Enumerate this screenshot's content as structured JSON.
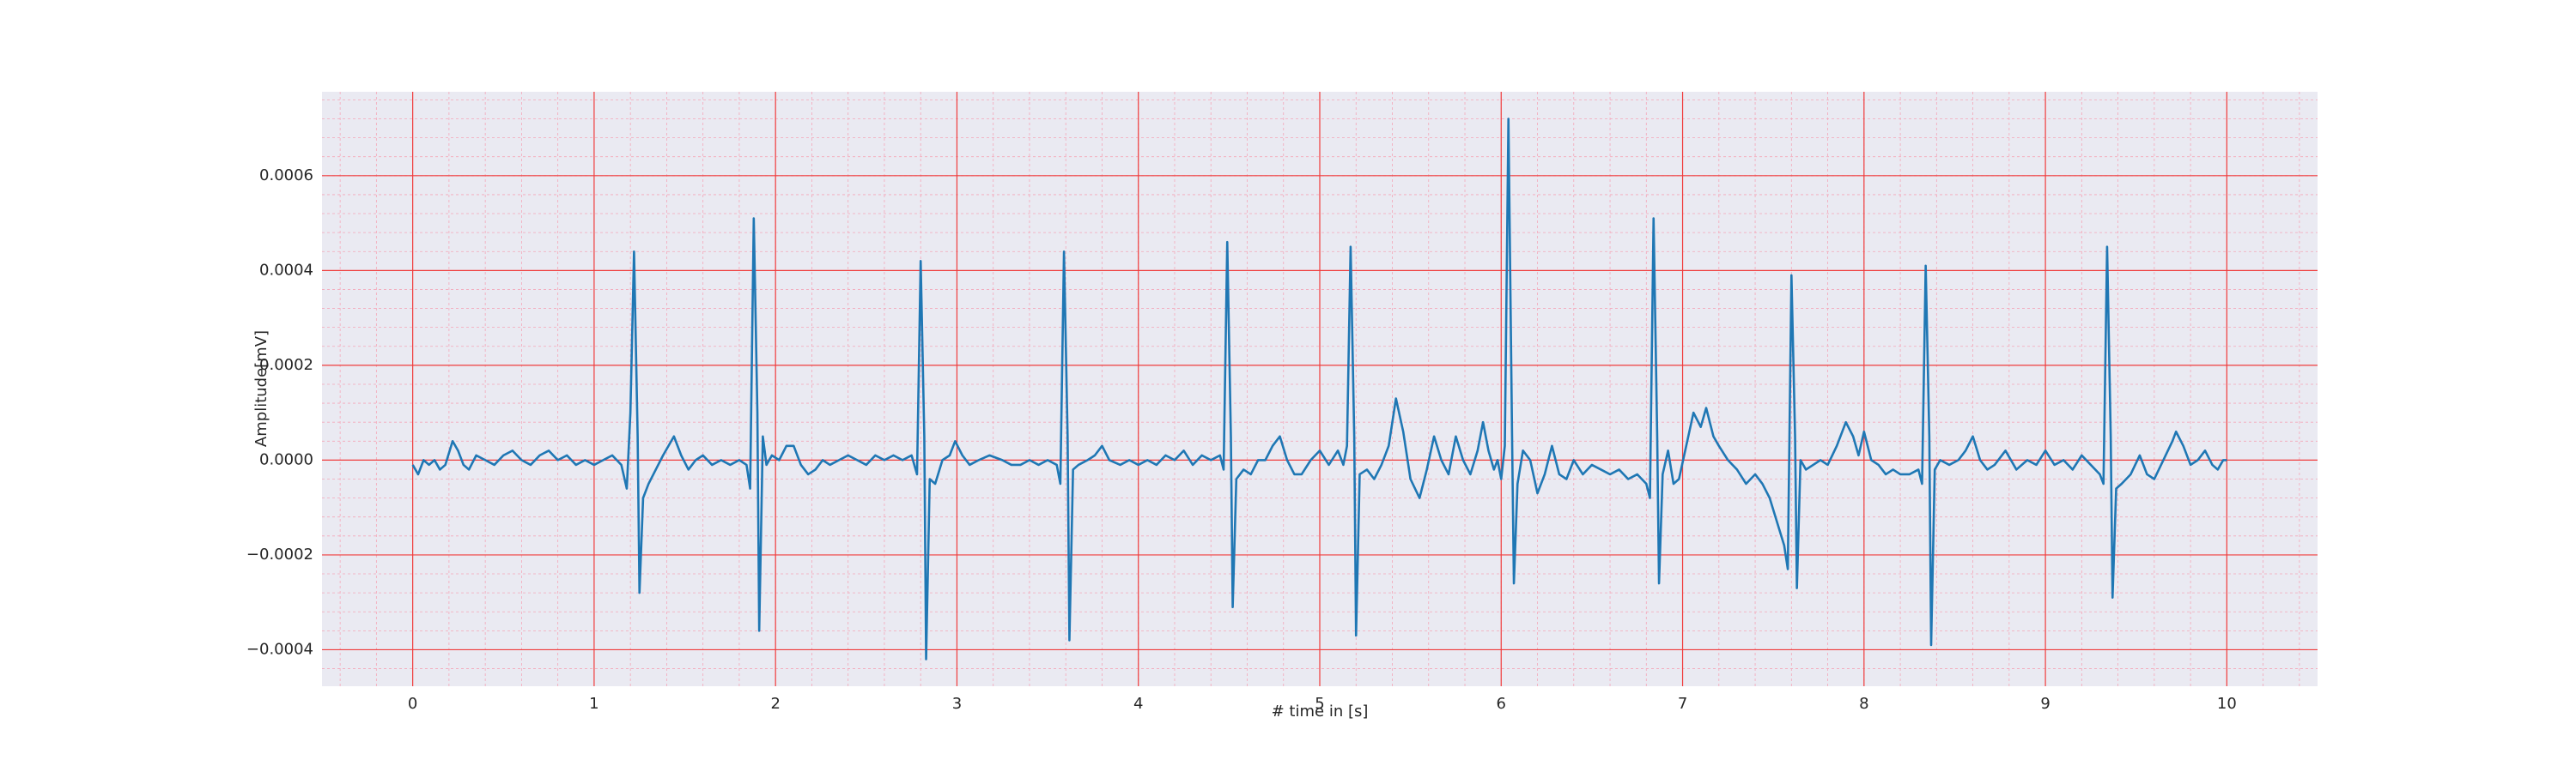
{
  "chart_data": {
    "type": "line",
    "xlabel": "# time in [s]",
    "ylabel": "Amplitude[mV]",
    "color": "#1f77b4",
    "grid": true,
    "minor_grid": true,
    "xlim": [
      -0.5,
      10.5
    ],
    "xticks": [
      0,
      1,
      2,
      3,
      4,
      5,
      6,
      7,
      8,
      9,
      10
    ],
    "ylim": [
      -0.000477,
      0.000777
    ],
    "yticks": [
      {
        "value": -0.0004,
        "label": "−0.0004"
      },
      {
        "value": -0.0002,
        "label": "−0.0002"
      },
      {
        "value": 0,
        "label": "0.0000"
      },
      0.0002,
      0.0004,
      0.0006
    ],
    "x": [
      0,
      0.03,
      0.06,
      0.09,
      0.12,
      0.15,
      0.18,
      0.22,
      0.25,
      0.28,
      0.31,
      0.35,
      0.4,
      0.45,
      0.5,
      0.55,
      0.6,
      0.65,
      0.7,
      0.75,
      0.8,
      0.85,
      0.9,
      0.95,
      1.0,
      1.05,
      1.1,
      1.15,
      1.18,
      1.2,
      1.22,
      1.24,
      1.25,
      1.27,
      1.3,
      1.34,
      1.38,
      1.44,
      1.48,
      1.52,
      1.56,
      1.6,
      1.65,
      1.7,
      1.75,
      1.8,
      1.84,
      1.86,
      1.88,
      1.9,
      1.91,
      1.93,
      1.95,
      1.98,
      2.02,
      2.06,
      2.1,
      2.14,
      2.18,
      2.22,
      2.26,
      2.3,
      2.35,
      2.4,
      2.45,
      2.5,
      2.55,
      2.6,
      2.65,
      2.7,
      2.75,
      2.78,
      2.8,
      2.82,
      2.83,
      2.85,
      2.88,
      2.92,
      2.96,
      2.99,
      3.03,
      3.07,
      3.12,
      3.18,
      3.25,
      3.3,
      3.35,
      3.4,
      3.45,
      3.5,
      3.55,
      3.57,
      3.59,
      3.61,
      3.62,
      3.64,
      3.67,
      3.72,
      3.76,
      3.8,
      3.84,
      3.9,
      3.95,
      4.0,
      4.05,
      4.1,
      4.15,
      4.2,
      4.25,
      4.3,
      4.35,
      4.4,
      4.45,
      4.47,
      4.49,
      4.51,
      4.52,
      4.54,
      4.58,
      4.62,
      4.66,
      4.7,
      4.74,
      4.78,
      4.82,
      4.86,
      4.9,
      4.95,
      5.0,
      5.05,
      5.1,
      5.13,
      5.15,
      5.17,
      5.19,
      5.2,
      5.22,
      5.26,
      5.3,
      5.34,
      5.38,
      5.42,
      5.46,
      5.5,
      5.55,
      5.59,
      5.63,
      5.67,
      5.71,
      5.75,
      5.79,
      5.83,
      5.87,
      5.9,
      5.93,
      5.96,
      5.98,
      6.0,
      6.02,
      6.04,
      6.06,
      6.07,
      6.09,
      6.12,
      6.16,
      6.2,
      6.24,
      6.28,
      6.32,
      6.36,
      6.4,
      6.45,
      6.5,
      6.55,
      6.6,
      6.65,
      6.7,
      6.75,
      6.8,
      6.82,
      6.84,
      6.86,
      6.87,
      6.89,
      6.92,
      6.95,
      6.98,
      7.02,
      7.06,
      7.1,
      7.13,
      7.17,
      7.2,
      7.25,
      7.3,
      7.35,
      7.4,
      7.44,
      7.48,
      7.52,
      7.56,
      7.58,
      7.6,
      7.62,
      7.63,
      7.65,
      7.68,
      7.72,
      7.76,
      7.8,
      7.85,
      7.9,
      7.94,
      7.97,
      8.0,
      8.04,
      8.08,
      8.12,
      8.16,
      8.2,
      8.25,
      8.3,
      8.32,
      8.34,
      8.36,
      8.37,
      8.39,
      8.42,
      8.47,
      8.52,
      8.56,
      8.6,
      8.64,
      8.68,
      8.72,
      8.78,
      8.84,
      8.9,
      8.95,
      9.0,
      9.05,
      9.1,
      9.15,
      9.2,
      9.25,
      9.3,
      9.32,
      9.34,
      9.36,
      9.37,
      9.39,
      9.42,
      9.47,
      9.52,
      9.56,
      9.6,
      9.65,
      9.7,
      9.72,
      9.76,
      9.8,
      9.84,
      9.88,
      9.92,
      9.95,
      9.98,
      10.0
    ],
    "values": [
      -1e-05,
      -3e-05,
      0,
      -1e-05,
      0,
      -2e-05,
      -1e-05,
      4e-05,
      2e-05,
      -1e-05,
      -2e-05,
      1e-05,
      0,
      -1e-05,
      1e-05,
      2e-05,
      0,
      -1e-05,
      1e-05,
      2e-05,
      0,
      1e-05,
      -1e-05,
      0,
      -1e-05,
      0,
      1e-05,
      -1e-05,
      -6e-05,
      0.0001,
      0.00044,
      5e-05,
      -0.00028,
      -8e-05,
      -5e-05,
      -2e-05,
      1e-05,
      5e-05,
      1e-05,
      -2e-05,
      0,
      1e-05,
      -1e-05,
      0,
      -1e-05,
      0,
      -1e-05,
      -6e-05,
      0.00051,
      0.0001,
      -0.00036,
      5e-05,
      -1e-05,
      1e-05,
      0,
      3e-05,
      3e-05,
      -1e-05,
      -3e-05,
      -2e-05,
      0,
      -1e-05,
      0,
      1e-05,
      0,
      -1e-05,
      1e-05,
      0,
      1e-05,
      0,
      1e-05,
      -3e-05,
      0.00042,
      5e-05,
      -0.00042,
      -4e-05,
      -5e-05,
      0,
      1e-05,
      4e-05,
      1e-05,
      -1e-05,
      0,
      1e-05,
      0,
      -1e-05,
      -1e-05,
      0,
      -1e-05,
      0,
      -1e-05,
      -5e-05,
      0.00044,
      5e-05,
      -0.00038,
      -2e-05,
      -1e-05,
      0,
      1e-05,
      3e-05,
      0,
      -1e-05,
      0,
      -1e-05,
      0,
      -1e-05,
      1e-05,
      0,
      2e-05,
      -1e-05,
      1e-05,
      0,
      1e-05,
      -2e-05,
      0.00046,
      5e-05,
      -0.00031,
      -4e-05,
      -2e-05,
      -3e-05,
      0,
      0,
      3e-05,
      5e-05,
      0,
      -3e-05,
      -3e-05,
      0,
      2e-05,
      -1e-05,
      2e-05,
      -1e-05,
      3e-05,
      0.00045,
      5e-05,
      -0.00037,
      -3e-05,
      -2e-05,
      -4e-05,
      -1e-05,
      3e-05,
      0.00013,
      6e-05,
      -4e-05,
      -8e-05,
      -2e-05,
      5e-05,
      0,
      -3e-05,
      5e-05,
      0,
      -3e-05,
      2e-05,
      8e-05,
      2e-05,
      -2e-05,
      0,
      -4e-05,
      3e-05,
      0.00072,
      5e-05,
      -0.00026,
      -5e-05,
      2e-05,
      0,
      -7e-05,
      -3e-05,
      3e-05,
      -3e-05,
      -4e-05,
      0,
      -3e-05,
      -1e-05,
      -2e-05,
      -3e-05,
      -2e-05,
      -4e-05,
      -3e-05,
      -5e-05,
      -8e-05,
      0.00051,
      5e-05,
      -0.00026,
      -3e-05,
      2e-05,
      -5e-05,
      -4e-05,
      3e-05,
      0.0001,
      7e-05,
      0.00011,
      5e-05,
      3e-05,
      0,
      -2e-05,
      -5e-05,
      -3e-05,
      -5e-05,
      -8e-05,
      -0.00013,
      -0.00018,
      -0.00023,
      0.00039,
      5e-05,
      -0.00027,
      0,
      -2e-05,
      -1e-05,
      0,
      -1e-05,
      3e-05,
      8e-05,
      5e-05,
      1e-05,
      6e-05,
      0,
      -1e-05,
      -3e-05,
      -2e-05,
      -3e-05,
      -3e-05,
      -2e-05,
      -5e-05,
      0.00041,
      5e-05,
      -0.00039,
      -2e-05,
      0,
      -1e-05,
      0,
      2e-05,
      5e-05,
      0,
      -2e-05,
      -1e-05,
      2e-05,
      -2e-05,
      0,
      -1e-05,
      2e-05,
      -1e-05,
      0,
      -2e-05,
      1e-05,
      -1e-05,
      -3e-05,
      -5e-05,
      0.00045,
      5e-05,
      -0.00029,
      -6e-05,
      -5e-05,
      -3e-05,
      1e-05,
      -3e-05,
      -4e-05,
      0,
      4e-05,
      6e-05,
      3e-05,
      -1e-05,
      0,
      2e-05,
      -1e-05,
      -2e-05,
      0,
      0
    ]
  }
}
